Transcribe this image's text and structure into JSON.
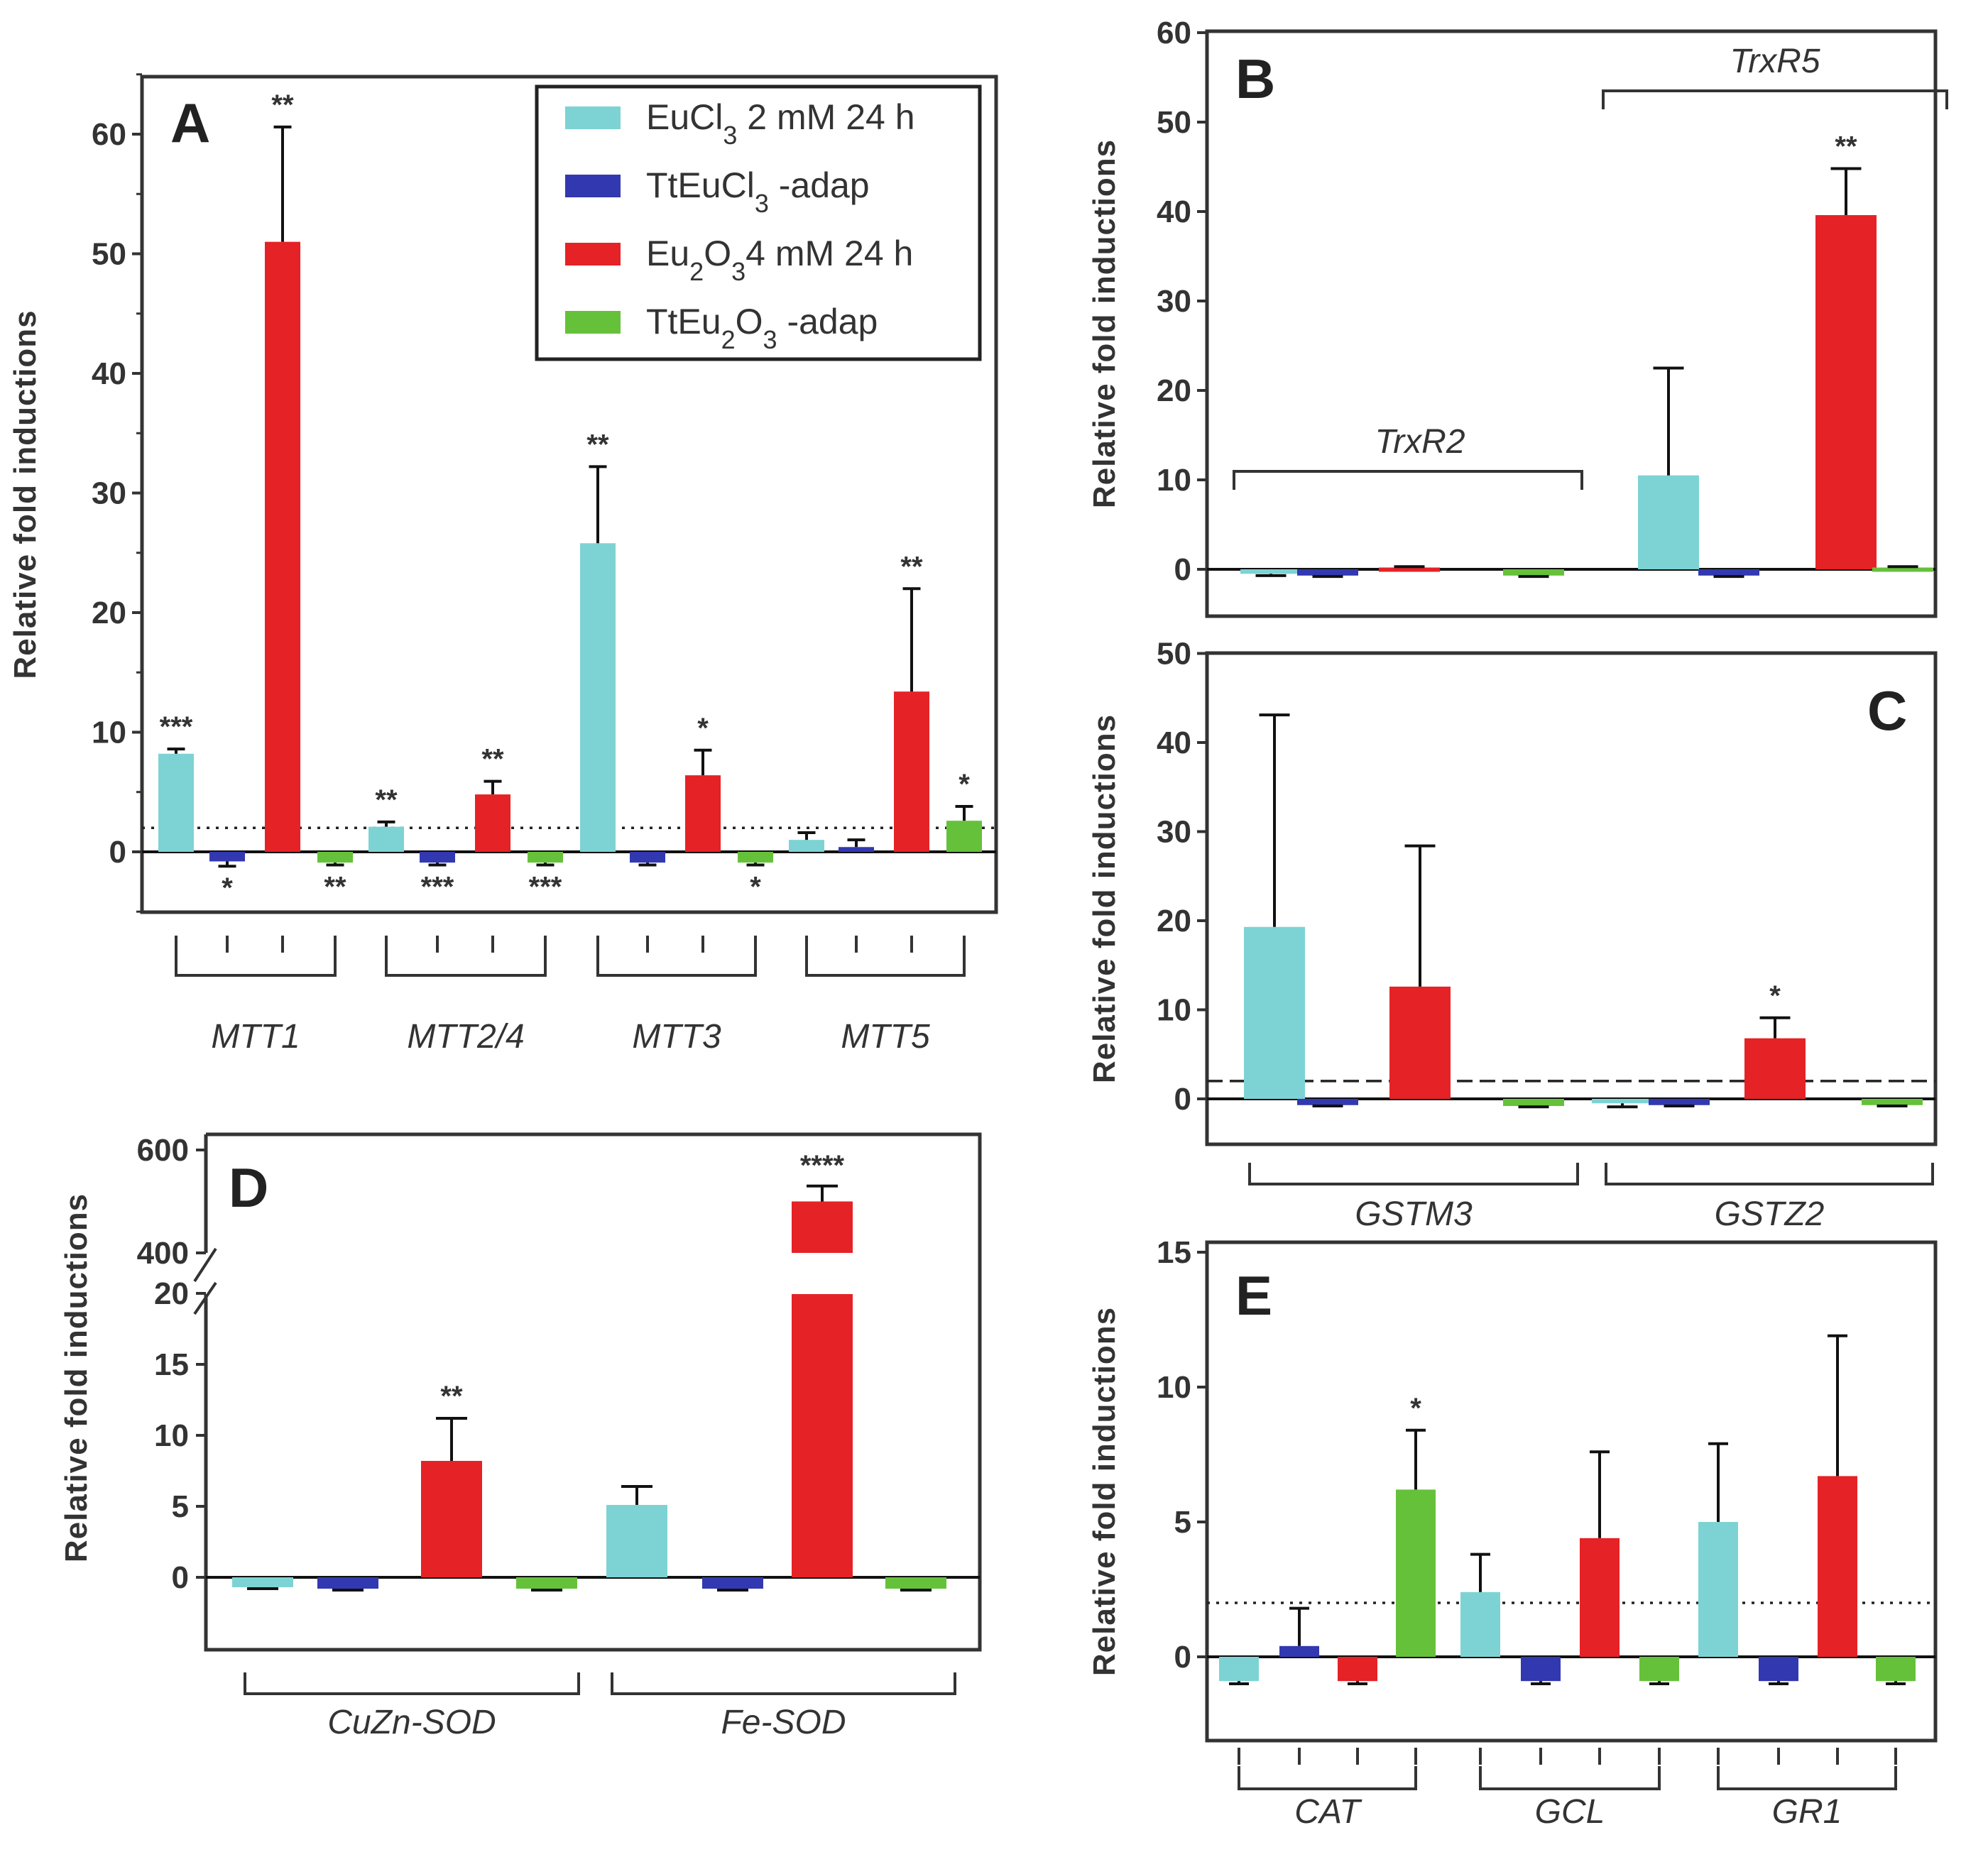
{
  "colors": {
    "EuCl3_2mM_24h": "#7dd3d3",
    "TtEuCl3_adap": "#3238b0",
    "Eu2O3_4mM_24h": "#e52226",
    "TtEu2O3_adap": "#66c13a",
    "axis": "#333333"
  },
  "legend": {
    "items": [
      {
        "key": "EuCl3_2mM_24h",
        "main": "EuCl",
        "sub": "3",
        "rest": " 2 mM 24 h"
      },
      {
        "key": "TtEuCl3_adap",
        "main": "TtEuCl",
        "sub": "3",
        "rest": " -adap"
      },
      {
        "key": "Eu2O3_4mM_24h",
        "main": "Eu",
        "sub": "2",
        "mid": "O",
        "sub2": "3",
        "rest": "4 mM 24 h"
      },
      {
        "key": "TtEu2O3_adap",
        "main": "TtEu",
        "sub": "2",
        "mid": "O",
        "sub2": "3",
        "rest": " -adap"
      }
    ]
  },
  "chart_data": [
    {
      "panel": "A",
      "type": "bar",
      "ylabel": "Relative fold inductions",
      "ylim": [
        -5,
        65
      ],
      "yticks": [
        0,
        10,
        20,
        30,
        40,
        50,
        60
      ],
      "threshold": 2,
      "threshold_style": "dotted",
      "gene_groups": [
        {
          "gene": "MTT1",
          "bars": [
            {
              "series": "EuCl3_2mM_24h",
              "value": 8.2,
              "err": 0.4,
              "sig": "***"
            },
            {
              "series": "TtEuCl3_adap",
              "value": -0.8,
              "err": 0.4,
              "sig": "*"
            },
            {
              "series": "Eu2O3_4mM_24h",
              "value": 51,
              "err": 9.6,
              "sig": "**"
            },
            {
              "series": "TtEu2O3_adap",
              "value": -0.9,
              "err": 0.2,
              "sig": "**"
            }
          ]
        },
        {
          "gene": "MTT2/4",
          "bars": [
            {
              "series": "EuCl3_2mM_24h",
              "value": 2.1,
              "err": 0.4,
              "sig": "**"
            },
            {
              "series": "TtEuCl3_adap",
              "value": -0.9,
              "err": 0.2,
              "sig": "***"
            },
            {
              "series": "Eu2O3_4mM_24h",
              "value": 4.8,
              "err": 1.1,
              "sig": "**"
            },
            {
              "series": "TtEu2O3_adap",
              "value": -0.9,
              "err": 0.2,
              "sig": "***"
            }
          ]
        },
        {
          "gene": "MTT3",
          "bars": [
            {
              "series": "EuCl3_2mM_24h",
              "value": 25.8,
              "err": 6.4,
              "sig": "**"
            },
            {
              "series": "TtEuCl3_adap",
              "value": -0.9,
              "err": 0.2,
              "sig": ""
            },
            {
              "series": "Eu2O3_4mM_24h",
              "value": 6.4,
              "err": 2.1,
              "sig": "*"
            },
            {
              "series": "TtEu2O3_adap",
              "value": -0.9,
              "err": 0.2,
              "sig": "*"
            }
          ]
        },
        {
          "gene": "MTT5",
          "bars": [
            {
              "series": "EuCl3_2mM_24h",
              "value": 1.0,
              "err": 0.6,
              "sig": ""
            },
            {
              "series": "TtEuCl3_adap",
              "value": 0.4,
              "err": 0.6,
              "sig": ""
            },
            {
              "series": "Eu2O3_4mM_24h",
              "value": 13.4,
              "err": 8.6,
              "sig": "**"
            },
            {
              "series": "TtEu2O3_adap",
              "value": 2.6,
              "err": 1.2,
              "sig": "*"
            }
          ]
        }
      ]
    },
    {
      "panel": "B",
      "type": "bar",
      "ylabel": "Relative fold inductions",
      "ylim": [
        -5,
        60
      ],
      "yticks": [
        0,
        10,
        20,
        30,
        40,
        50,
        60
      ],
      "threshold": null,
      "gene_groups": [
        {
          "gene": "TrxR2",
          "bars": [
            {
              "series": "EuCl3_2mM_24h",
              "value": -0.5,
              "err": 0.2,
              "sig": ""
            },
            {
              "series": "TtEuCl3_adap",
              "value": -0.7,
              "err": 0.1,
              "sig": ""
            },
            {
              "series": "Eu2O3_4mM_24h",
              "value": 0.2,
              "err": 0.1,
              "sig": ""
            },
            {
              "series": "TtEu2O3_adap",
              "value": -0.7,
              "err": 0.1,
              "sig": ""
            }
          ]
        },
        {
          "gene": "TrxR5",
          "bars": [
            {
              "series": "EuCl3_2mM_24h",
              "value": 10.5,
              "err": 12,
              "sig": ""
            },
            {
              "series": "TtEuCl3_adap",
              "value": -0.7,
              "err": 0.1,
              "sig": ""
            },
            {
              "series": "Eu2O3_4mM_24h",
              "value": 39.6,
              "err": 5.2,
              "sig": "**"
            },
            {
              "series": "TtEu2O3_adap",
              "value": 0.2,
              "err": 0.1,
              "sig": ""
            }
          ]
        }
      ]
    },
    {
      "panel": "C",
      "type": "bar",
      "ylabel": "Relative fold inductions",
      "ylim": [
        -5,
        50
      ],
      "yticks": [
        0,
        10,
        20,
        30,
        40,
        50
      ],
      "threshold": 2,
      "threshold_style": "dashed",
      "gene_groups": [
        {
          "gene": "GSTM3",
          "bars": [
            {
              "series": "EuCl3_2mM_24h",
              "value": 19.3,
              "err": 23.8,
              "sig": ""
            },
            {
              "series": "TtEuCl3_adap",
              "value": -0.7,
              "err": 0.1,
              "sig": ""
            },
            {
              "series": "Eu2O3_4mM_24h",
              "value": 12.6,
              "err": 15.8,
              "sig": ""
            },
            {
              "series": "TtEu2O3_adap",
              "value": -0.8,
              "err": 0.1,
              "sig": ""
            }
          ]
        },
        {
          "gene": "GSTZ2",
          "bars": [
            {
              "series": "EuCl3_2mM_24h",
              "value": -0.5,
              "err": 0.4,
              "sig": ""
            },
            {
              "series": "TtEuCl3_adap",
              "value": -0.7,
              "err": 0.1,
              "sig": ""
            },
            {
              "series": "Eu2O3_4mM_24h",
              "value": 6.8,
              "err": 2.3,
              "sig": "*"
            },
            {
              "series": "TtEu2O3_adap",
              "value": -0.7,
              "err": 0.1,
              "sig": ""
            }
          ]
        }
      ]
    },
    {
      "panel": "D",
      "type": "bar",
      "ylabel": "Relative fold inductions",
      "ylim_lower": [
        -5,
        20
      ],
      "ylim_upper": [
        400,
        600
      ],
      "axis_break": true,
      "yticks_lower": [
        0,
        5,
        10,
        15,
        20
      ],
      "ytick_labels_upper": [
        "400",
        "600"
      ],
      "threshold": null,
      "gene_groups": [
        {
          "gene": "CuZn-SOD",
          "bars": [
            {
              "series": "EuCl3_2mM_24h",
              "value": -0.7,
              "err": 0.1,
              "sig": ""
            },
            {
              "series": "TtEuCl3_adap",
              "value": -0.8,
              "err": 0.1,
              "sig": ""
            },
            {
              "series": "Eu2O3_4mM_24h",
              "value": 8.2,
              "err": 3.0,
              "sig": "**"
            },
            {
              "series": "TtEu2O3_adap",
              "value": -0.8,
              "err": 0.1,
              "sig": ""
            }
          ]
        },
        {
          "gene": "Fe-SOD",
          "bars": [
            {
              "series": "EuCl3_2mM_24h",
              "value": 5.1,
              "err": 1.3,
              "sig": ""
            },
            {
              "series": "TtEuCl3_adap",
              "value": -0.8,
              "err": 0.1,
              "sig": ""
            },
            {
              "series": "Eu2O3_4mM_24h",
              "value": 500,
              "err": 30,
              "sig": "****"
            },
            {
              "series": "TtEu2O3_adap",
              "value": -0.8,
              "err": 0.1,
              "sig": ""
            }
          ]
        }
      ]
    },
    {
      "panel": "E",
      "type": "bar",
      "ylabel": "Relative fold inductions",
      "ylim": [
        -3,
        15
      ],
      "yticks": [
        0,
        5,
        10,
        15
      ],
      "threshold": 2,
      "threshold_style": "dotted",
      "gene_groups": [
        {
          "gene": "CAT",
          "bars": [
            {
              "series": "EuCl3_2mM_24h",
              "value": -0.9,
              "err": 0.1,
              "sig": ""
            },
            {
              "series": "TtEuCl3_adap",
              "value": 0.4,
              "err": 1.4,
              "sig": ""
            },
            {
              "series": "Eu2O3_4mM_24h",
              "value": -0.9,
              "err": 0.1,
              "sig": ""
            },
            {
              "series": "TtEu2O3_adap",
              "value": 6.2,
              "err": 2.2,
              "sig": "*"
            }
          ]
        },
        {
          "gene": "GCL",
          "bars": [
            {
              "series": "EuCl3_2mM_24h",
              "value": 2.4,
              "err": 1.4,
              "sig": ""
            },
            {
              "series": "TtEuCl3_adap",
              "value": -0.9,
              "err": 0.1,
              "sig": ""
            },
            {
              "series": "Eu2O3_4mM_24h",
              "value": 4.4,
              "err": 3.2,
              "sig": ""
            },
            {
              "series": "TtEu2O3_adap",
              "value": -0.9,
              "err": 0.1,
              "sig": ""
            }
          ]
        },
        {
          "gene": "GR1",
          "bars": [
            {
              "series": "EuCl3_2mM_24h",
              "value": 5.0,
              "err": 2.9,
              "sig": ""
            },
            {
              "series": "TtEuCl3_adap",
              "value": -0.9,
              "err": 0.1,
              "sig": ""
            },
            {
              "series": "Eu2O3_4mM_24h",
              "value": 6.7,
              "err": 5.2,
              "sig": ""
            },
            {
              "series": "TtEu2O3_adap",
              "value": -0.9,
              "err": 0.1,
              "sig": ""
            }
          ]
        }
      ]
    }
  ]
}
